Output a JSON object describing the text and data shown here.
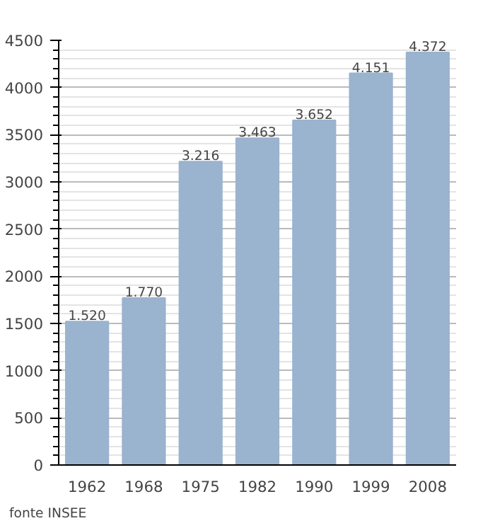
{
  "chart_data": {
    "type": "bar",
    "categories": [
      "1962",
      "1968",
      "1975",
      "1982",
      "1990",
      "1999",
      "2008"
    ],
    "values": [
      1520,
      1770,
      3216,
      3463,
      3652,
      4151,
      4372
    ],
    "value_labels": [
      "1.520",
      "1.770",
      "3.216",
      "3.463",
      "3.652",
      "4.151",
      "4.372"
    ],
    "color": "#9ab3cf",
    "ylim": [
      0,
      4500
    ],
    "yticks": [
      0,
      500,
      1000,
      1500,
      2000,
      2500,
      3000,
      3500,
      4000,
      4500
    ],
    "grid": "y",
    "annotations": [
      "fonte INSEE"
    ]
  }
}
